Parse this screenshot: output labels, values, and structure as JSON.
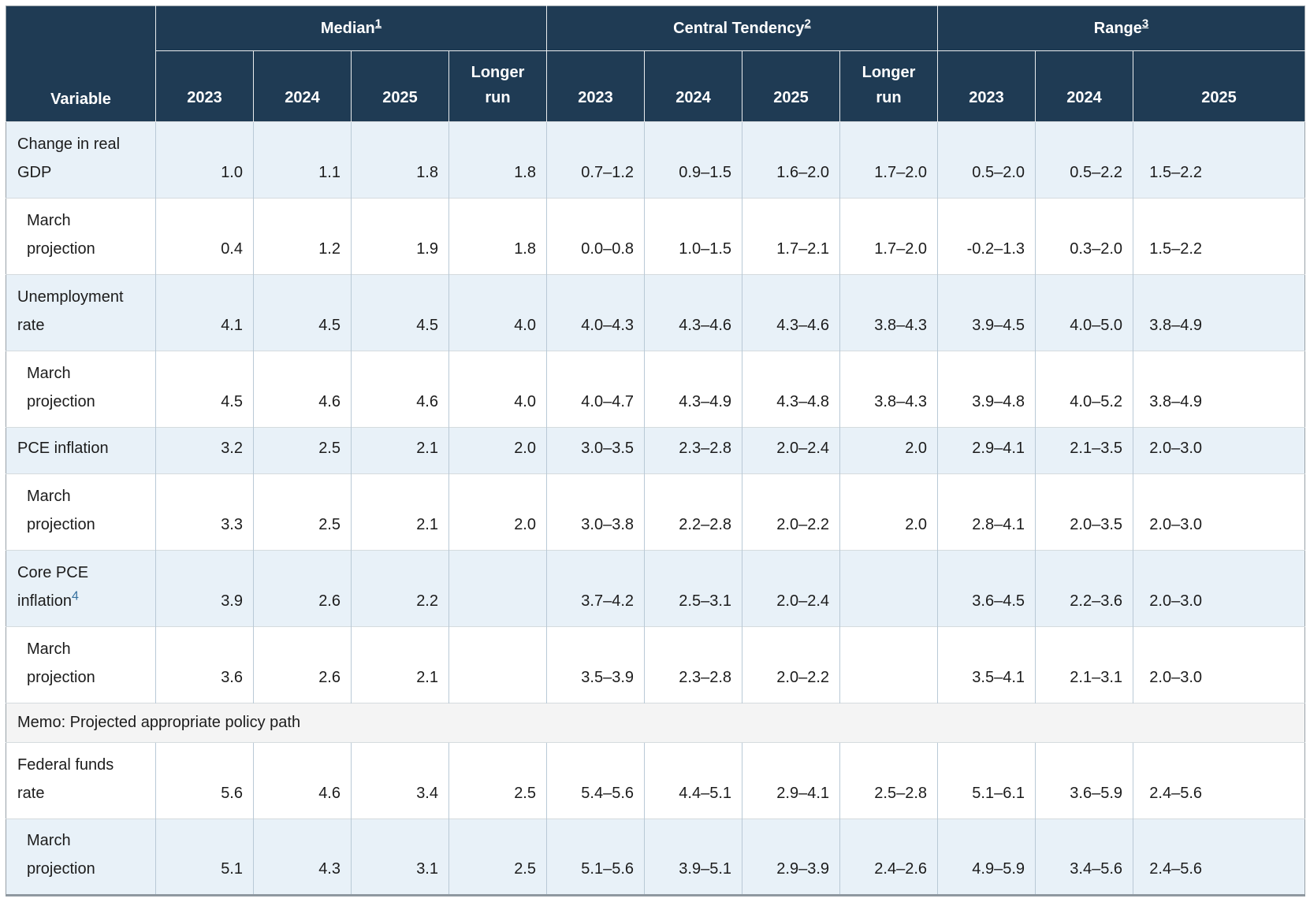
{
  "table": {
    "colors": {
      "header_bg": "#1f3b54",
      "row_stripe": "#e8f1f8",
      "memo_bg": "#f4f4f4",
      "footnote_blue": "#36719f"
    },
    "header": {
      "variable": "Variable",
      "groups": [
        {
          "label": "Median",
          "sup": "1",
          "span": 4
        },
        {
          "label": "Central Tendency",
          "sup": "2",
          "span": 4
        },
        {
          "label": "Range",
          "sup": "3",
          "span": 3
        }
      ],
      "years": [
        "2023",
        "2024",
        "2025",
        "Longer run",
        "2023",
        "2024",
        "2025",
        "Longer run",
        "2023",
        "2024",
        "2025"
      ]
    },
    "rows": [
      {
        "type": "data",
        "label": "Change in real GDP",
        "indent": false,
        "stripe": true,
        "single": false,
        "values": [
          "1.0",
          "1.1",
          "1.8",
          "1.8",
          "0.7–1.2",
          "0.9–1.5",
          "1.6–2.0",
          "1.7–2.0",
          "0.5–2.0",
          "0.5–2.2",
          "1.5–2.2"
        ]
      },
      {
        "type": "data",
        "label": "March projection",
        "indent": true,
        "stripe": false,
        "single": false,
        "values": [
          "0.4",
          "1.2",
          "1.9",
          "1.8",
          "0.0–0.8",
          "1.0–1.5",
          "1.7–2.1",
          "1.7–2.0",
          "-0.2–1.3",
          "0.3–2.0",
          "1.5–2.2"
        ]
      },
      {
        "type": "data",
        "label": "Unemployment rate",
        "indent": false,
        "stripe": true,
        "single": false,
        "values": [
          "4.1",
          "4.5",
          "4.5",
          "4.0",
          "4.0–4.3",
          "4.3–4.6",
          "4.3–4.6",
          "3.8–4.3",
          "3.9–4.5",
          "4.0–5.0",
          "3.8–4.9"
        ]
      },
      {
        "type": "data",
        "label": "March projection",
        "indent": true,
        "stripe": false,
        "single": false,
        "values": [
          "4.5",
          "4.6",
          "4.6",
          "4.0",
          "4.0–4.7",
          "4.3–4.9",
          "4.3–4.8",
          "3.8–4.3",
          "3.9–4.8",
          "4.0–5.2",
          "3.8–4.9"
        ]
      },
      {
        "type": "data",
        "label": "PCE inflation",
        "indent": false,
        "stripe": true,
        "single": true,
        "values": [
          "3.2",
          "2.5",
          "2.1",
          "2.0",
          "3.0–3.5",
          "2.3–2.8",
          "2.0–2.4",
          "2.0",
          "2.9–4.1",
          "2.1–3.5",
          "2.0–3.0"
        ]
      },
      {
        "type": "data",
        "label": "March projection",
        "indent": true,
        "stripe": false,
        "single": false,
        "values": [
          "3.3",
          "2.5",
          "2.1",
          "2.0",
          "3.0–3.8",
          "2.2–2.8",
          "2.0–2.2",
          "2.0",
          "2.8–4.1",
          "2.0–3.5",
          "2.0–3.0"
        ]
      },
      {
        "type": "data",
        "label": "Core PCE inflation",
        "sup": "4",
        "indent": false,
        "stripe": true,
        "single": false,
        "values": [
          "3.9",
          "2.6",
          "2.2",
          "",
          "3.7–4.2",
          "2.5–3.1",
          "2.0–2.4",
          "",
          "3.6–4.5",
          "2.2–3.6",
          "2.0–3.0"
        ]
      },
      {
        "type": "data",
        "label": "March projection",
        "indent": true,
        "stripe": false,
        "single": false,
        "values": [
          "3.6",
          "2.6",
          "2.1",
          "",
          "3.5–3.9",
          "2.3–2.8",
          "2.0–2.2",
          "",
          "3.5–4.1",
          "2.1–3.1",
          "2.0–3.0"
        ]
      },
      {
        "type": "memo",
        "label": "Memo: Projected appropriate policy path"
      },
      {
        "type": "data",
        "label": "Federal funds rate",
        "indent": false,
        "stripe": false,
        "single": false,
        "values": [
          "5.6",
          "4.6",
          "3.4",
          "2.5",
          "5.4–5.6",
          "4.4–5.1",
          "2.9–4.1",
          "2.5–2.8",
          "5.1–6.1",
          "3.6–5.9",
          "2.4–5.6"
        ]
      },
      {
        "type": "data",
        "label": "March projection",
        "indent": true,
        "stripe": true,
        "single": false,
        "values": [
          "5.1",
          "4.3",
          "3.1",
          "2.5",
          "5.1–5.6",
          "3.9–5.1",
          "2.9–3.9",
          "2.4–2.6",
          "4.9–5.9",
          "3.4–5.6",
          "2.4–5.6"
        ]
      }
    ]
  }
}
